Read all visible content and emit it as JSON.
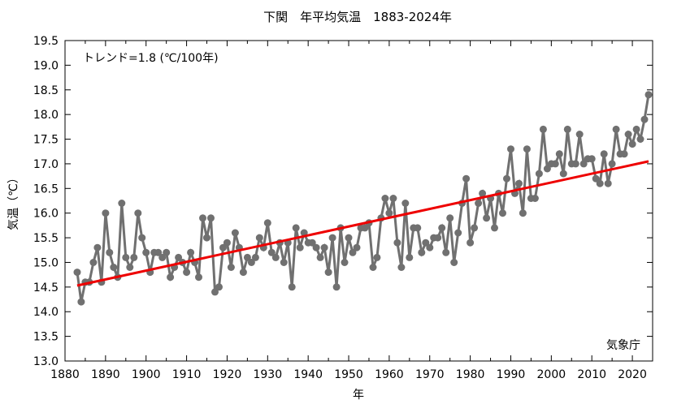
{
  "chart_data": {
    "type": "line",
    "title": "下関　年平均気温　1883-2024年",
    "xlabel": "年",
    "ylabel": "気温（℃）",
    "trend_label": "トレンド=1.8 (℃/100年)",
    "source_label": "気象庁",
    "xlim": [
      1880,
      2025
    ],
    "ylim": [
      13.0,
      19.5
    ],
    "xticks": [
      "1880",
      "1890",
      "1900",
      "1910",
      "1920",
      "1930",
      "1940",
      "1950",
      "1960",
      "1970",
      "1980",
      "1990",
      "2000",
      "2010",
      "2020"
    ],
    "yticks": [
      "13.0",
      "13.5",
      "14.0",
      "14.5",
      "15.0",
      "15.5",
      "16.0",
      "16.5",
      "17.0",
      "17.5",
      "18.0",
      "18.5",
      "19.0",
      "19.5"
    ],
    "series_color": "#707070",
    "trend_color": "#ee0000",
    "grid": false,
    "series": [
      {
        "values": [
          [
            1883,
            14.8
          ],
          [
            1884,
            14.2
          ],
          [
            1885,
            14.6
          ],
          [
            1886,
            14.6
          ],
          [
            1887,
            15.0
          ],
          [
            1888,
            15.3
          ],
          [
            1889,
            14.6
          ],
          [
            1890,
            16.0
          ],
          [
            1891,
            15.2
          ],
          [
            1892,
            14.9
          ],
          [
            1893,
            14.7
          ],
          [
            1894,
            16.2
          ],
          [
            1895,
            15.1
          ],
          [
            1896,
            14.9
          ],
          [
            1897,
            15.1
          ],
          [
            1898,
            16.0
          ],
          [
            1899,
            15.5
          ],
          [
            1900,
            15.2
          ],
          [
            1901,
            14.8
          ],
          [
            1902,
            15.2
          ],
          [
            1903,
            15.2
          ],
          [
            1904,
            15.1
          ],
          [
            1905,
            15.2
          ],
          [
            1906,
            14.7
          ],
          [
            1907,
            14.9
          ],
          [
            1908,
            15.1
          ],
          [
            1909,
            15.0
          ],
          [
            1910,
            14.8
          ],
          [
            1911,
            15.2
          ],
          [
            1912,
            15.0
          ],
          [
            1913,
            14.7
          ],
          [
            1914,
            15.9
          ],
          [
            1915,
            15.5
          ],
          [
            1916,
            15.9
          ],
          [
            1917,
            14.4
          ],
          [
            1918,
            14.5
          ],
          [
            1919,
            15.3
          ],
          [
            1920,
            15.4
          ],
          [
            1921,
            14.9
          ],
          [
            1922,
            15.6
          ],
          [
            1923,
            15.3
          ],
          [
            1924,
            14.8
          ],
          [
            1925,
            15.1
          ],
          [
            1926,
            15.0
          ],
          [
            1927,
            15.1
          ],
          [
            1928,
            15.5
          ],
          [
            1929,
            15.3
          ],
          [
            1930,
            15.8
          ],
          [
            1931,
            15.2
          ],
          [
            1932,
            15.1
          ],
          [
            1933,
            15.4
          ],
          [
            1934,
            15.0
          ],
          [
            1935,
            15.4
          ],
          [
            1936,
            14.5
          ],
          [
            1937,
            15.7
          ],
          [
            1938,
            15.3
          ],
          [
            1939,
            15.6
          ],
          [
            1940,
            15.4
          ],
          [
            1941,
            15.4
          ],
          [
            1942,
            15.3
          ],
          [
            1943,
            15.1
          ],
          [
            1944,
            15.3
          ],
          [
            1945,
            14.8
          ],
          [
            1946,
            15.5
          ],
          [
            1947,
            14.5
          ],
          [
            1948,
            15.7
          ],
          [
            1949,
            15.0
          ],
          [
            1950,
            15.5
          ],
          [
            1951,
            15.2
          ],
          [
            1952,
            15.3
          ],
          [
            1953,
            15.7
          ],
          [
            1954,
            15.7
          ],
          [
            1955,
            15.8
          ],
          [
            1956,
            14.9
          ],
          [
            1957,
            15.1
          ],
          [
            1958,
            15.9
          ],
          [
            1959,
            16.3
          ],
          [
            1960,
            16.0
          ],
          [
            1961,
            16.3
          ],
          [
            1962,
            15.4
          ],
          [
            1963,
            14.9
          ],
          [
            1964,
            16.2
          ],
          [
            1965,
            15.1
          ],
          [
            1966,
            15.7
          ],
          [
            1967,
            15.7
          ],
          [
            1968,
            15.2
          ],
          [
            1969,
            15.4
          ],
          [
            1970,
            15.3
          ],
          [
            1971,
            15.5
          ],
          [
            1972,
            15.5
          ],
          [
            1973,
            15.7
          ],
          [
            1974,
            15.2
          ],
          [
            1975,
            15.9
          ],
          [
            1976,
            15.0
          ],
          [
            1977,
            15.6
          ],
          [
            1978,
            16.2
          ],
          [
            1979,
            16.7
          ],
          [
            1980,
            15.4
          ],
          [
            1981,
            15.7
          ],
          [
            1982,
            16.2
          ],
          [
            1983,
            16.4
          ],
          [
            1984,
            15.9
          ],
          [
            1985,
            16.3
          ],
          [
            1986,
            15.7
          ],
          [
            1987,
            16.4
          ],
          [
            1988,
            16.0
          ],
          [
            1989,
            16.7
          ],
          [
            1990,
            17.3
          ],
          [
            1991,
            16.4
          ],
          [
            1992,
            16.6
          ],
          [
            1993,
            16.0
          ],
          [
            1994,
            17.3
          ],
          [
            1995,
            16.3
          ],
          [
            1996,
            16.3
          ],
          [
            1997,
            16.8
          ],
          [
            1998,
            17.7
          ],
          [
            1999,
            16.9
          ],
          [
            2000,
            17.0
          ],
          [
            2001,
            17.0
          ],
          [
            2002,
            17.2
          ],
          [
            2003,
            16.8
          ],
          [
            2004,
            17.7
          ],
          [
            2005,
            17.0
          ],
          [
            2006,
            17.0
          ],
          [
            2007,
            17.6
          ],
          [
            2008,
            17.0
          ],
          [
            2009,
            17.1
          ],
          [
            2010,
            17.1
          ],
          [
            2011,
            16.7
          ],
          [
            2012,
            16.6
          ],
          [
            2013,
            17.2
          ],
          [
            2014,
            16.6
          ],
          [
            2015,
            17.0
          ],
          [
            2016,
            17.7
          ],
          [
            2017,
            17.2
          ],
          [
            2018,
            17.2
          ],
          [
            2019,
            17.6
          ],
          [
            2020,
            17.4
          ],
          [
            2021,
            17.7
          ],
          [
            2022,
            17.5
          ],
          [
            2023,
            17.9
          ],
          [
            2024,
            18.4
          ]
        ]
      }
    ],
    "trend": {
      "x": [
        1883,
        2024
      ],
      "y": [
        14.53,
        17.05
      ]
    }
  }
}
